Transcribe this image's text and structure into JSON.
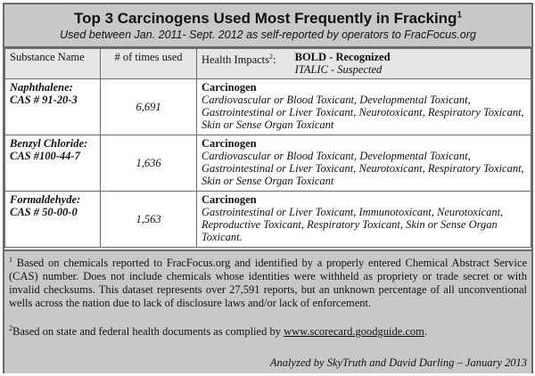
{
  "title": "Top 3 Carcinogens Used Most Frequently in Fracking",
  "title_footnote": "1",
  "subtitle": "Used between Jan. 2011- Sept. 2012 as self-reported by operators to FracFocus.org",
  "header": {
    "substance": "Substance Name",
    "times_used": "# of times used",
    "health_impacts": "Health Impacts",
    "health_impacts_footnote": "2",
    "legend_bold": "BOLD - Recognized",
    "legend_italic": "ITALIC - Suspected"
  },
  "rows": [
    {
      "name": "Naphthalene:",
      "cas": "CAS # 91-20-3",
      "count": "6,691",
      "recognized": "Carcinogen",
      "suspected": "Cardiovascular or Blood Toxicant, Developmental Toxicant, Gastrointestinal or Liver Toxicant, Neurotoxicant, Respiratory Toxicant, Skin or Sense Organ Toxicant"
    },
    {
      "name": "Benzyl Chloride:",
      "cas": "CAS #100-44-7",
      "count": "1,636",
      "recognized": "Carcinogen",
      "suspected": "Cardiovascular or Blood Toxicant, Developmental Toxicant, Gastrointestinal or Liver Toxicant, Neurotoxicant, Respiratory Toxicant, Skin or Sense Organ Toxicant"
    },
    {
      "name": "Formaldehyde:",
      "cas": "CAS # 50-00-0",
      "count": "1,563",
      "recognized": "Carcinogen",
      "suspected": "Gastrointestinal or Liver Toxicant, Immunotoxicant, Neurotoxicant, Reproductive Toxicant, Respiratory Toxicant, Skin or Sense Organ Toxicant."
    }
  ],
  "footnotes": {
    "fn1_mark": "1",
    "fn1": "Based on chemicals reported to FracFocus.org and identified by a properly entered Chemical Abstract Service (CAS) number. Does not include chemicals whose identities were withheld as propriety or trade secret or with invalid checksums. This dataset represents over 27,591 reports, but an unknown percentage of all unconventional wells across the nation due to lack of disclosure laws and/or lack of enforcement.",
    "fn2_mark": "2",
    "fn2": "Based on state and federal health documents as complied by ",
    "fn2_link": "www.scorecard.goodguide.com",
    "fn2_end": "."
  },
  "credit": "Analyzed by SkyTruth and David Darling – January 2013"
}
